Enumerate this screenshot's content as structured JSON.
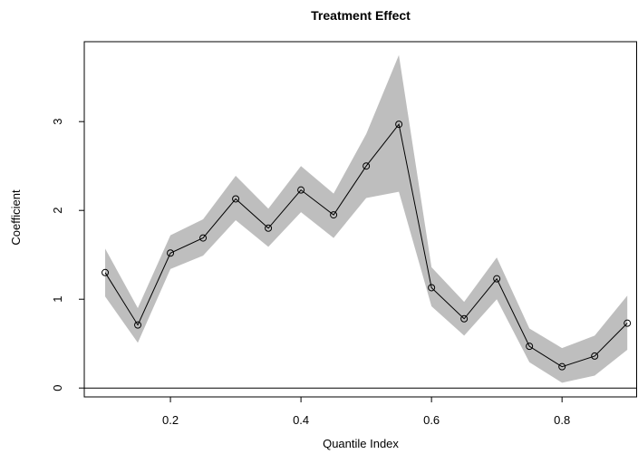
{
  "chart_data": {
    "type": "line",
    "title": "Treatment Effect",
    "x_label": "Quantile Index",
    "y_label": "Coefficient",
    "x": [
      0.1,
      0.15,
      0.2,
      0.25,
      0.3,
      0.35,
      0.4,
      0.45,
      0.5,
      0.55,
      0.6,
      0.65,
      0.7,
      0.75,
      0.8,
      0.85,
      0.9
    ],
    "values": [
      1.3,
      0.71,
      1.52,
      1.69,
      2.13,
      1.8,
      2.23,
      1.95,
      2.5,
      2.97,
      1.13,
      0.78,
      1.23,
      0.47,
      0.24,
      0.36,
      0.73
    ],
    "upper": [
      1.57,
      0.9,
      1.72,
      1.9,
      2.39,
      2.02,
      2.5,
      2.19,
      2.86,
      3.75,
      1.36,
      0.97,
      1.47,
      0.67,
      0.45,
      0.59,
      1.04
    ],
    "lower": [
      1.03,
      0.51,
      1.34,
      1.49,
      1.89,
      1.59,
      1.98,
      1.69,
      2.14,
      2.21,
      0.92,
      0.59,
      1.0,
      0.29,
      0.06,
      0.14,
      0.43
    ],
    "color": "#000000",
    "band_color": "#bebebe",
    "hline": 0,
    "xlim": [
      0.068,
      0.915
    ],
    "ylim": [
      -0.1,
      3.9
    ],
    "xticks": [
      0.2,
      0.4,
      0.6,
      0.8
    ],
    "yticks": [
      0,
      1,
      2,
      3
    ]
  }
}
